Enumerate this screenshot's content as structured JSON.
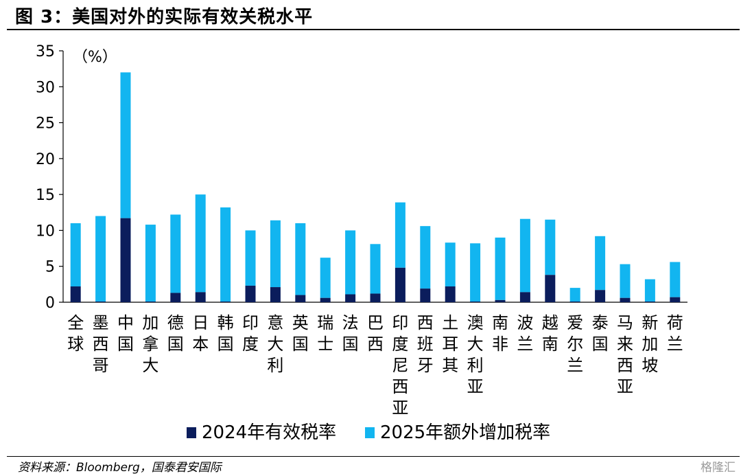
{
  "header": {
    "title": "图 3：美国对外的实际有效关税水平"
  },
  "footer": {
    "source": "资料来源：Bloomberg，国泰君安国际",
    "watermark": "格隆汇"
  },
  "chart_data": {
    "type": "bar",
    "stacked": true,
    "unit_label": "（%）",
    "xlabel": "",
    "ylabel": "",
    "ylim": [
      0,
      35
    ],
    "yticks": [
      0,
      5,
      10,
      15,
      20,
      25,
      30,
      35
    ],
    "grid": false,
    "legend_position": "bottom",
    "categories": [
      "全球",
      "墨西哥",
      "中国",
      "加拿大",
      "德国",
      "日本",
      "韩国",
      "印度",
      "意大利",
      "英国",
      "瑞士",
      "法国",
      "巴西",
      "印度尼西亚",
      "西班牙",
      "土耳其",
      "澳大利亚",
      "南非",
      "波兰",
      "越南",
      "爱尔兰",
      "泰国",
      "马来西亚",
      "新加坡",
      "荷兰"
    ],
    "series": [
      {
        "name": "2024年有效税率",
        "color": "#0b1d5c",
        "values": [
          2.2,
          0.1,
          11.7,
          0.1,
          1.3,
          1.4,
          0.1,
          2.3,
          2.1,
          1.0,
          0.6,
          1.1,
          1.2,
          4.8,
          1.9,
          2.2,
          0.1,
          0.3,
          1.4,
          3.8,
          0.1,
          1.7,
          0.6,
          0.1,
          0.7
        ]
      },
      {
        "name": "2025年额外增加税率",
        "color": "#12b5f0",
        "values": [
          8.8,
          11.9,
          20.3,
          10.7,
          10.9,
          13.6,
          13.1,
          7.7,
          9.3,
          10.0,
          5.6,
          8.9,
          6.9,
          9.1,
          8.7,
          6.1,
          8.1,
          8.7,
          10.2,
          7.7,
          1.9,
          7.5,
          4.7,
          3.1,
          4.9
        ]
      }
    ]
  }
}
